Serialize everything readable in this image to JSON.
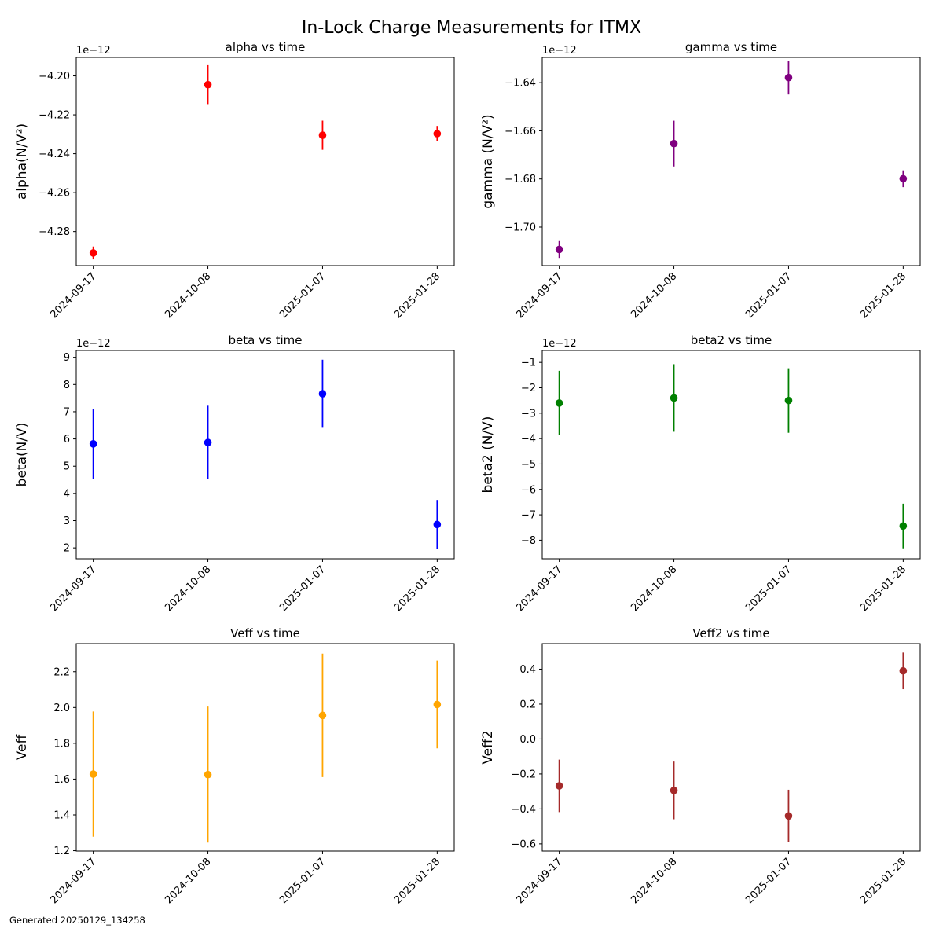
{
  "title": "In-Lock Charge Measurements for ITMX",
  "footer": "Generated 20250129_134258",
  "chart_data": [
    {
      "type": "scatter",
      "title": "alpha vs time",
      "ylabel": "alpha(N/V²)",
      "exponent": "1e−12",
      "color": "#ff0000",
      "x": [
        "2024-09-17",
        "2024-10-08",
        "2025-01-07",
        "2025-01-28"
      ],
      "y": [
        -4.291,
        -4.2045,
        -4.2305,
        -4.2297
      ],
      "yerr": [
        0.0033,
        0.01,
        0.0075,
        0.004
      ],
      "ylim": [
        -4.2975,
        -4.1905
      ],
      "yticks": [
        -4.28,
        -4.26,
        -4.24,
        -4.22,
        -4.2
      ],
      "ytick_labels": [
        "−4.28",
        "−4.26",
        "−4.24",
        "−4.22",
        "−4.20"
      ]
    },
    {
      "type": "scatter",
      "title": "gamma vs time",
      "ylabel": "gamma (N/V²)",
      "exponent": "1e−12",
      "color": "#800080",
      "x": [
        "2024-09-17",
        "2024-10-08",
        "2025-01-07",
        "2025-01-28"
      ],
      "y": [
        -1.7093,
        -1.6653,
        -1.6379,
        -1.6799
      ],
      "yerr": [
        0.0035,
        0.0095,
        0.007,
        0.0035
      ],
      "ylim": [
        -1.716,
        -1.6295
      ],
      "yticks": [
        -1.7,
        -1.68,
        -1.66,
        -1.64
      ],
      "ytick_labels": [
        "−1.70",
        "−1.68",
        "−1.66",
        "−1.64"
      ]
    },
    {
      "type": "scatter",
      "title": "beta vs time",
      "ylabel": "beta(N/V)",
      "exponent": "1e−12",
      "color": "#0000ff",
      "x": [
        "2024-09-17",
        "2024-10-08",
        "2025-01-07",
        "2025-01-28"
      ],
      "y": [
        5.82,
        5.87,
        7.66,
        2.86
      ],
      "yerr": [
        1.28,
        1.35,
        1.25,
        0.9
      ],
      "ylim": [
        1.6,
        9.25
      ],
      "yticks": [
        2,
        3,
        4,
        5,
        6,
        7,
        8,
        9
      ],
      "ytick_labels": [
        "2",
        "3",
        "4",
        "5",
        "6",
        "7",
        "8",
        "9"
      ]
    },
    {
      "type": "scatter",
      "title": "beta2 vs time",
      "ylabel": "beta2 (N/V)",
      "exponent": "1e−12",
      "color": "#008000",
      "x": [
        "2024-09-17",
        "2024-10-08",
        "2025-01-07",
        "2025-01-28"
      ],
      "y": [
        -2.6,
        -2.4,
        -2.5,
        -7.44
      ],
      "yerr": [
        1.27,
        1.33,
        1.27,
        0.88
      ],
      "ylim": [
        -8.73,
        -0.53
      ],
      "yticks": [
        -8,
        -7,
        -6,
        -5,
        -4,
        -3,
        -2,
        -1
      ],
      "ytick_labels": [
        "−8",
        "−7",
        "−6",
        "−5",
        "−4",
        "−3",
        "−2",
        "−1"
      ]
    },
    {
      "type": "scatter",
      "title": "Veff vs time",
      "ylabel": "Veff",
      "exponent": "",
      "color": "#ffa500",
      "x": [
        "2024-09-17",
        "2024-10-08",
        "2025-01-07",
        "2025-01-28"
      ],
      "y": [
        1.628,
        1.625,
        1.956,
        2.017
      ],
      "yerr": [
        0.35,
        0.38,
        0.345,
        0.245
      ],
      "ylim": [
        1.198,
        2.357
      ],
      "yticks": [
        1.2,
        1.4,
        1.6,
        1.8,
        2.0,
        2.2
      ],
      "ytick_labels": [
        "1.2",
        "1.4",
        "1.6",
        "1.8",
        "2.0",
        "2.2"
      ]
    },
    {
      "type": "scatter",
      "title": "Veff2 vs time",
      "ylabel": "Veff2",
      "exponent": "",
      "color": "#a52a2a",
      "x": [
        "2024-09-17",
        "2024-10-08",
        "2025-01-07",
        "2025-01-28"
      ],
      "y": [
        -0.268,
        -0.294,
        -0.44,
        0.39
      ],
      "yerr": [
        0.15,
        0.165,
        0.15,
        0.105
      ],
      "ylim": [
        -0.641,
        0.546
      ],
      "yticks": [
        -0.6,
        -0.4,
        -0.2,
        0.0,
        0.2,
        0.4
      ],
      "ytick_labels": [
        "−0.6",
        "−0.4",
        "−0.2",
        "0.0",
        "0.2",
        "0.4"
      ]
    }
  ]
}
